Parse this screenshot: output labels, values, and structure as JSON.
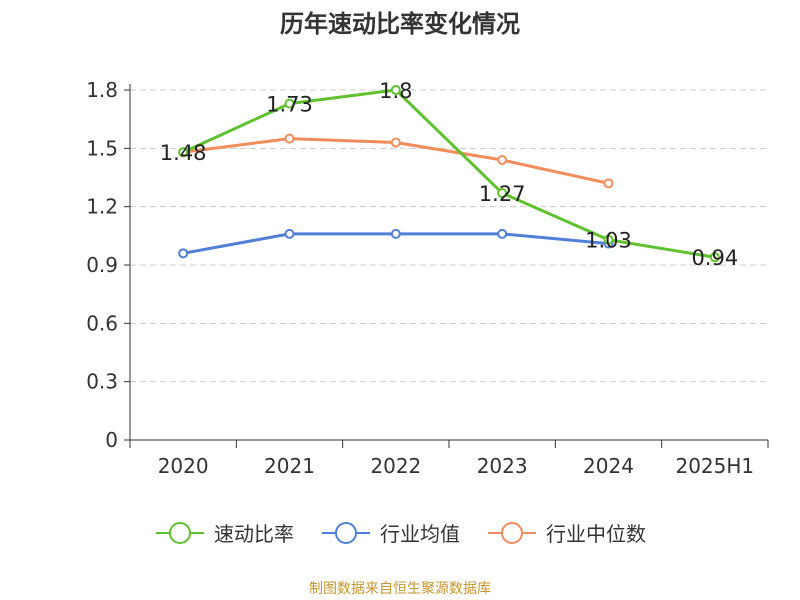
{
  "chart_data": {
    "type": "line",
    "title": "历年速动比率变化情况",
    "categories": [
      "2020",
      "2021",
      "2022",
      "2023",
      "2024",
      "2025H1"
    ],
    "ylim": [
      0,
      1.8
    ],
    "yticks": [
      "0",
      "0.3",
      "0.6",
      "0.9",
      "1.2",
      "1.5",
      "1.8"
    ],
    "grid": true,
    "legend_position": "bottom",
    "series": [
      {
        "name": "速动比率",
        "color": "#5ec12e",
        "values": [
          1.48,
          1.73,
          1.8,
          1.27,
          1.03,
          0.94
        ],
        "labels": [
          "1.48",
          "1.73",
          "1.8",
          "1.27",
          "1.03",
          "0.94"
        ]
      },
      {
        "name": "行业均值",
        "color": "#4f7fd8",
        "values": [
          0.96,
          1.06,
          1.06,
          1.06,
          1.01,
          null
        ]
      },
      {
        "name": "行业中位数",
        "color": "#f28c5a",
        "values": [
          1.48,
          1.55,
          1.53,
          1.44,
          1.32,
          null
        ]
      }
    ]
  },
  "source_text": "制图数据来自恒生聚源数据库"
}
